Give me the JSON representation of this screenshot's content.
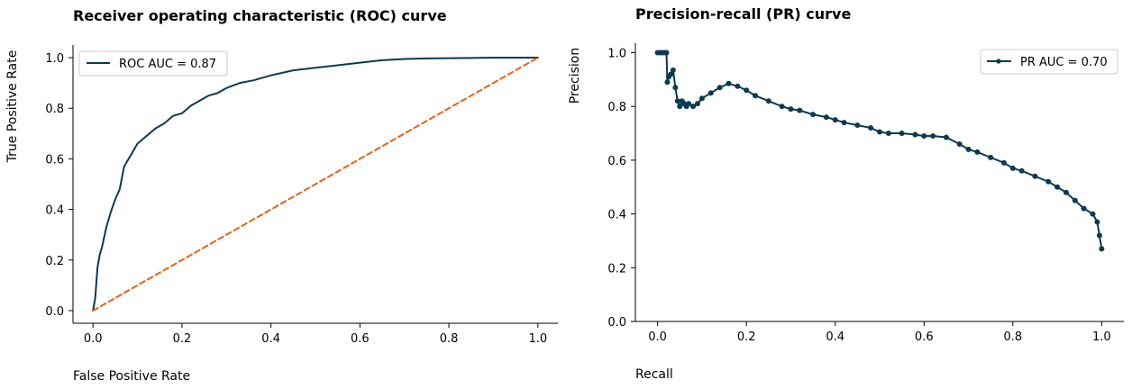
{
  "chart_data": [
    {
      "type": "line",
      "title": "Receiver operating characteristic (ROC) curve",
      "xlabel": "False Positive Rate",
      "ylabel": "True Positive Rate",
      "xlim": [
        -0.045,
        1.045
      ],
      "ylim": [
        -0.05,
        1.05
      ],
      "xticks": [
        0.0,
        0.2,
        0.4,
        0.6,
        0.8,
        1.0
      ],
      "yticks": [
        0.0,
        0.2,
        0.4,
        0.6,
        0.8,
        1.0
      ],
      "xtick_labels": [
        "0.0",
        "0.2",
        "0.4",
        "0.6",
        "0.8",
        "1.0"
      ],
      "ytick_labels": [
        "0.0",
        "0.2",
        "0.4",
        "0.6",
        "0.8",
        "1.0"
      ],
      "grid": false,
      "legend_position": "upper-left",
      "legend": [
        "ROC AUC = 0.87"
      ],
      "series": [
        {
          "name": "ROC AUC = 0.87",
          "color": "#0b3a53",
          "style": "solid",
          "x": [
            0.0,
            0.005,
            0.01,
            0.015,
            0.02,
            0.03,
            0.04,
            0.05,
            0.06,
            0.07,
            0.08,
            0.09,
            0.1,
            0.12,
            0.14,
            0.16,
            0.18,
            0.2,
            0.22,
            0.24,
            0.26,
            0.28,
            0.3,
            0.33,
            0.36,
            0.4,
            0.45,
            0.5,
            0.55,
            0.6,
            0.65,
            0.7,
            0.75,
            0.8,
            0.85,
            0.9,
            0.95,
            1.0
          ],
          "y": [
            0.0,
            0.05,
            0.17,
            0.22,
            0.25,
            0.33,
            0.39,
            0.44,
            0.48,
            0.57,
            0.6,
            0.63,
            0.66,
            0.69,
            0.72,
            0.74,
            0.77,
            0.78,
            0.81,
            0.83,
            0.85,
            0.86,
            0.88,
            0.9,
            0.91,
            0.93,
            0.95,
            0.96,
            0.97,
            0.98,
            0.99,
            0.995,
            0.997,
            0.998,
            0.999,
            1.0,
            1.0,
            1.0
          ]
        },
        {
          "color": "#e8610f",
          "style": "dashed",
          "x": [
            0.0,
            1.0
          ],
          "y": [
            0.0,
            1.0
          ]
        }
      ]
    },
    {
      "type": "line",
      "title": "Precision-recall (PR) curve",
      "xlabel": "Recall",
      "ylabel": "Precision",
      "xlim": [
        -0.05,
        1.05
      ],
      "ylim": [
        0.0,
        1.035
      ],
      "xticks": [
        0.0,
        0.2,
        0.4,
        0.6,
        0.8,
        1.0
      ],
      "yticks": [
        0.0,
        0.2,
        0.4,
        0.6,
        0.8,
        1.0
      ],
      "xtick_labels": [
        "0.0",
        "0.2",
        "0.4",
        "0.6",
        "0.8",
        "1.0"
      ],
      "ytick_labels": [
        "0.0",
        "0.2",
        "0.4",
        "0.6",
        "0.8",
        "1.0"
      ],
      "grid": false,
      "legend_position": "upper-right",
      "legend": [
        "PR AUC = 0.70"
      ],
      "series": [
        {
          "name": "PR AUC = 0.70",
          "color": "#0b3a53",
          "style": "solid-markers",
          "x": [
            0.0,
            0.005,
            0.01,
            0.015,
            0.02,
            0.022,
            0.025,
            0.03,
            0.035,
            0.04,
            0.045,
            0.05,
            0.055,
            0.06,
            0.065,
            0.07,
            0.08,
            0.09,
            0.1,
            0.12,
            0.14,
            0.16,
            0.18,
            0.2,
            0.22,
            0.25,
            0.28,
            0.3,
            0.32,
            0.35,
            0.38,
            0.4,
            0.42,
            0.45,
            0.48,
            0.5,
            0.52,
            0.55,
            0.58,
            0.6,
            0.62,
            0.65,
            0.68,
            0.7,
            0.72,
            0.75,
            0.78,
            0.8,
            0.82,
            0.85,
            0.88,
            0.9,
            0.92,
            0.94,
            0.96,
            0.98,
            0.99,
            0.995,
            1.0
          ],
          "y": [
            1.0,
            1.0,
            1.0,
            1.0,
            1.0,
            0.89,
            0.91,
            0.92,
            0.935,
            0.87,
            0.82,
            0.8,
            0.82,
            0.81,
            0.8,
            0.81,
            0.8,
            0.81,
            0.83,
            0.85,
            0.87,
            0.885,
            0.875,
            0.86,
            0.84,
            0.82,
            0.8,
            0.79,
            0.785,
            0.77,
            0.76,
            0.75,
            0.74,
            0.73,
            0.72,
            0.705,
            0.7,
            0.7,
            0.695,
            0.69,
            0.69,
            0.685,
            0.66,
            0.64,
            0.63,
            0.61,
            0.59,
            0.57,
            0.56,
            0.54,
            0.52,
            0.5,
            0.48,
            0.45,
            0.42,
            0.4,
            0.37,
            0.32,
            0.27
          ]
        }
      ]
    }
  ]
}
